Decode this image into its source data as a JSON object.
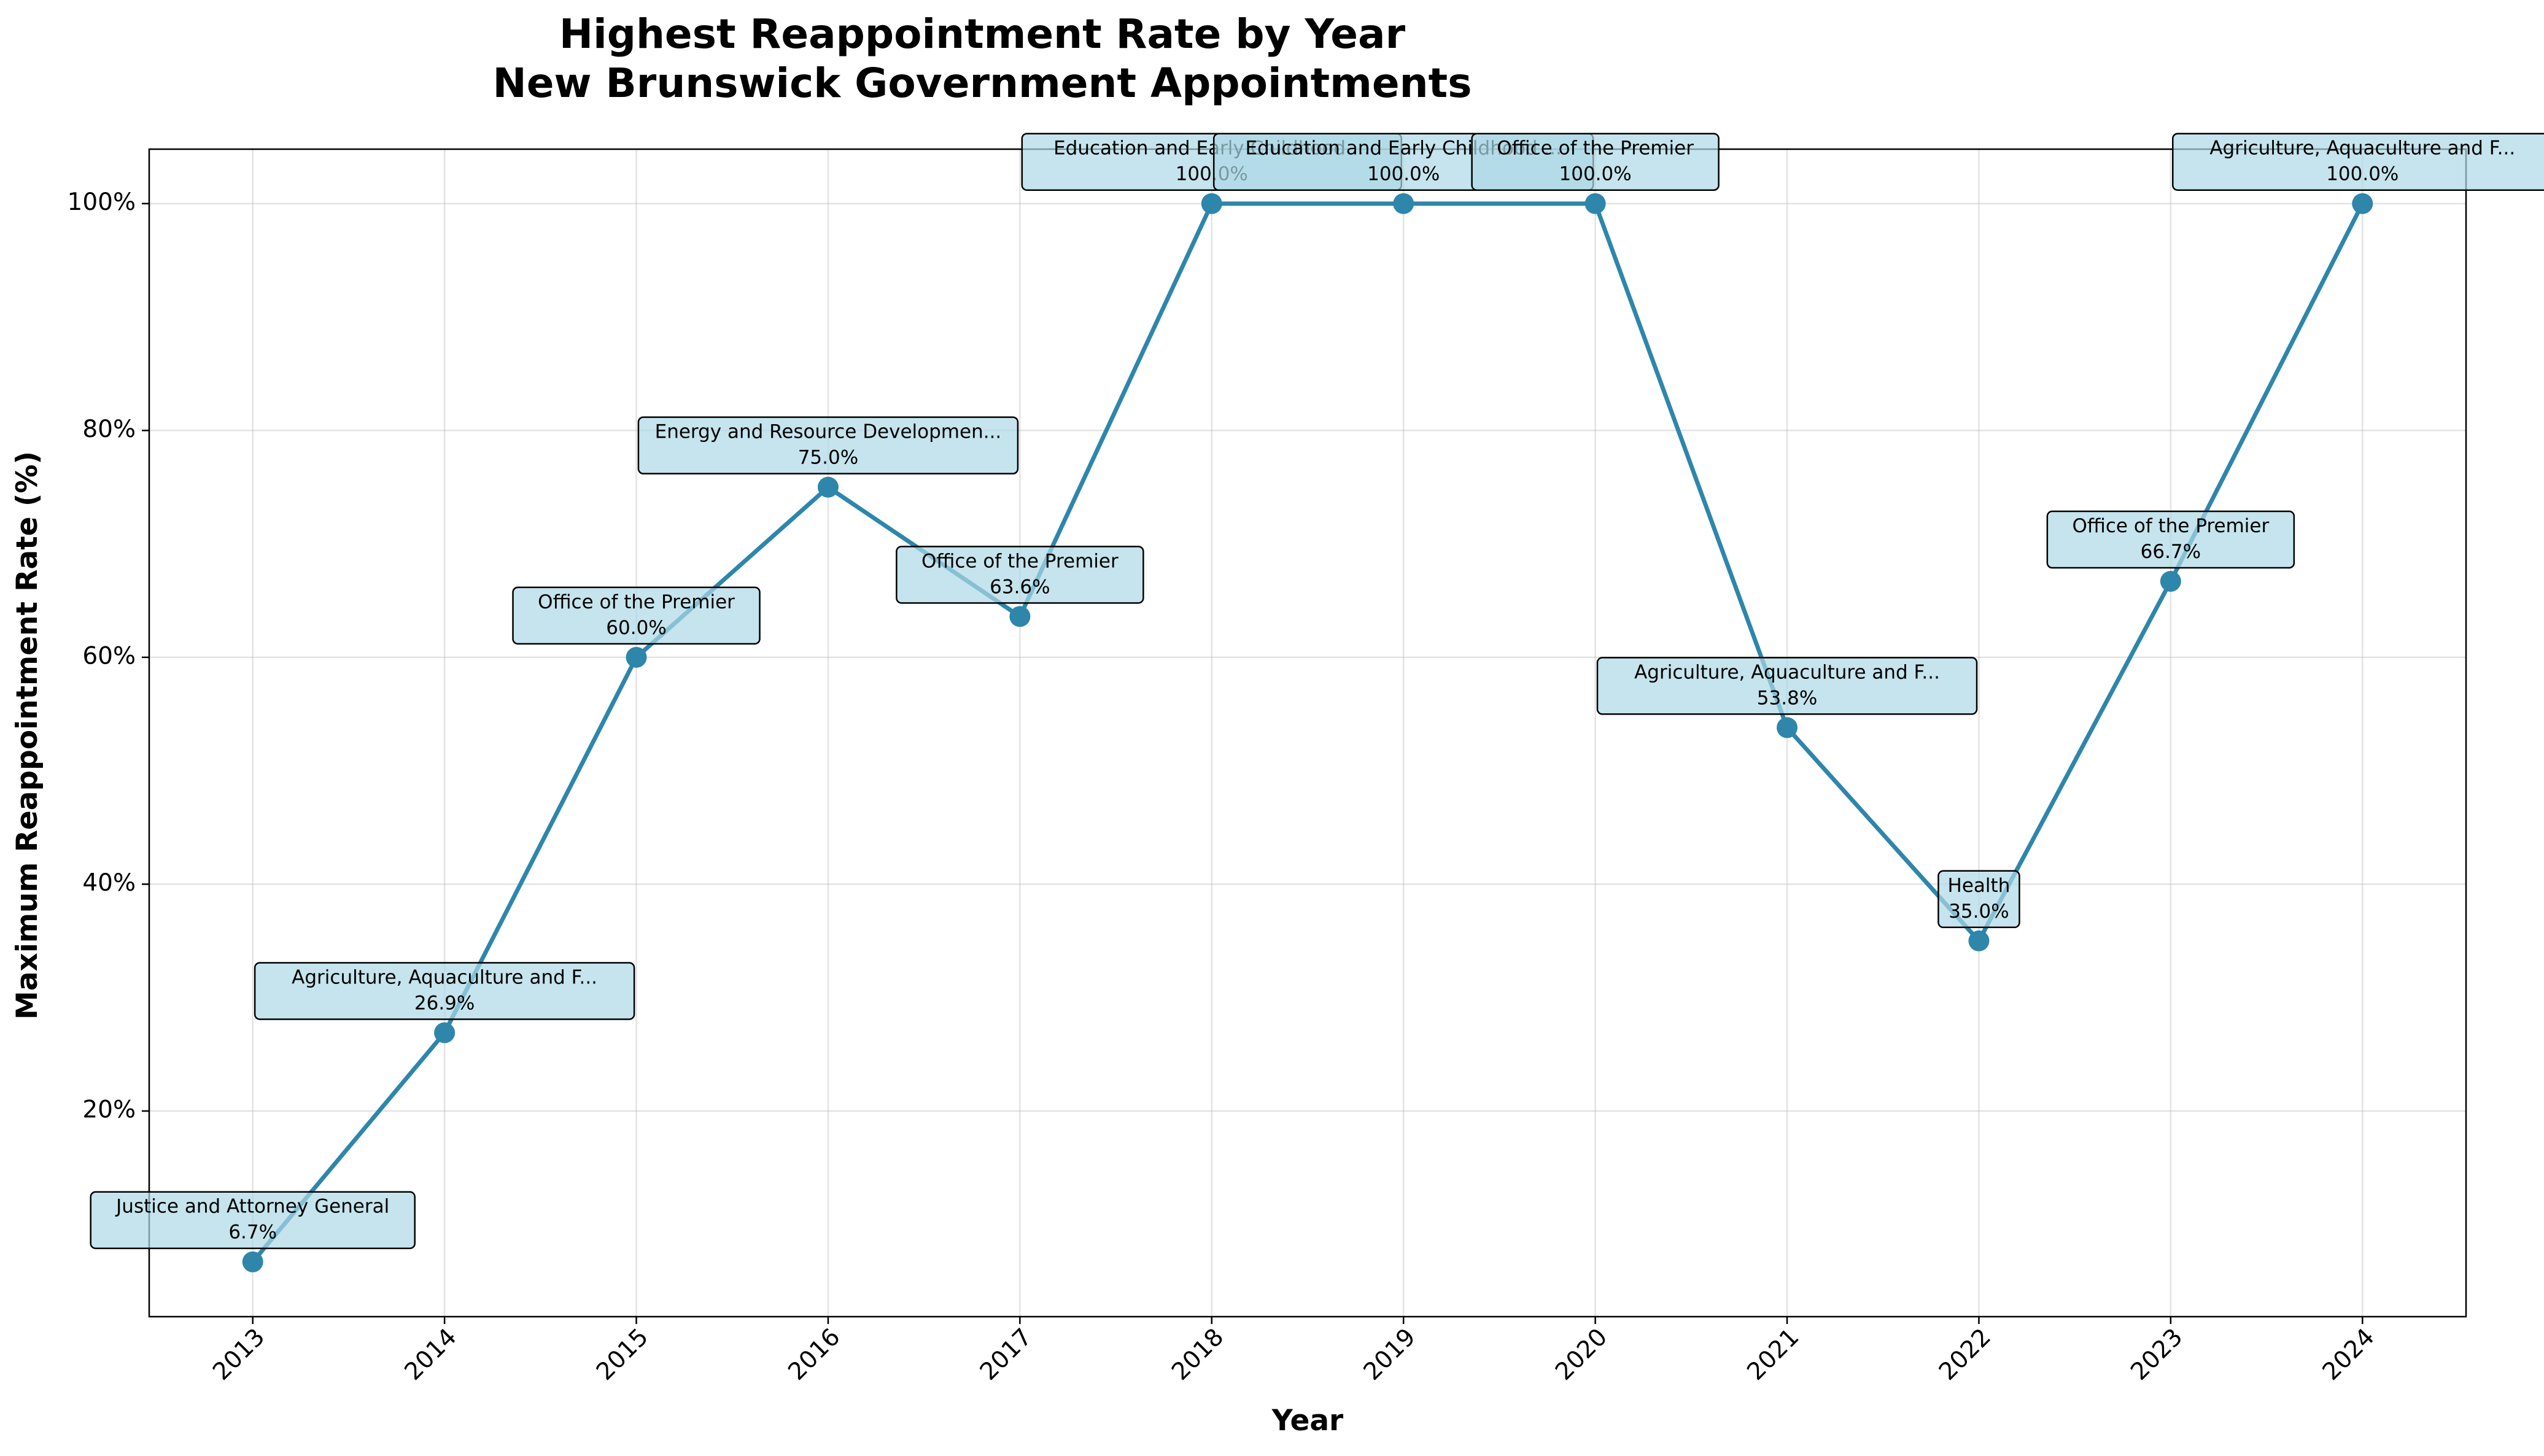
{
  "chart_data": {
    "type": "line",
    "title": [
      "Highest Reappointment Rate by Year",
      "New Brunswick Government Appointments"
    ],
    "xlabel": "Year",
    "ylabel": "Maximum Reappointment Rate (%)",
    "x": [
      2013,
      2014,
      2015,
      2016,
      2017,
      2018,
      2019,
      2020,
      2021,
      2022,
      2023,
      2024
    ],
    "x_tick_labels": [
      "2013",
      "2014",
      "2015",
      "2016",
      "2017",
      "2018",
      "2019",
      "2020",
      "2021",
      "2022",
      "2023",
      "2024"
    ],
    "series": [
      {
        "values": [
          6.7,
          26.9,
          60.0,
          75.0,
          63.6,
          100.0,
          100.0,
          100.0,
          53.8,
          35.0,
          66.7,
          100.0
        ]
      }
    ],
    "annotations": [
      {
        "org": "Justice and Attorney General",
        "value": "6.7%"
      },
      {
        "org": "Agriculture, Aquaculture and F...",
        "value": "26.9%"
      },
      {
        "org": "Office of the Premier",
        "value": "60.0%"
      },
      {
        "org": "Energy and Resource Developmen...",
        "value": "75.0%"
      },
      {
        "org": "Office of the Premier",
        "value": "63.6%"
      },
      {
        "org": "Education and Early Childhood ...",
        "value": "100.0%"
      },
      {
        "org": "Education and Early Childhood ...",
        "value": "100.0%"
      },
      {
        "org": "Office of the Premier",
        "value": "100.0%"
      },
      {
        "org": "Agriculture, Aquaculture and F...",
        "value": "53.8%"
      },
      {
        "org": "Health",
        "value": "35.0%"
      },
      {
        "org": "Office of the Premier",
        "value": "66.7%"
      },
      {
        "org": "Agriculture, Aquaculture and F...",
        "value": "100.0%"
      }
    ],
    "y_ticks": [
      20,
      40,
      60,
      80,
      100
    ],
    "y_tick_labels": [
      "20%",
      "40%",
      "60%",
      "80%",
      "100%"
    ],
    "xlim": [
      2012.46,
      2024.54
    ],
    "ylim": [
      1.87,
      104.8
    ],
    "grid": true,
    "colors": {
      "line": "#2e86ab",
      "annotation_fill": "#add8e6",
      "annotation_edge": "#000000"
    }
  }
}
